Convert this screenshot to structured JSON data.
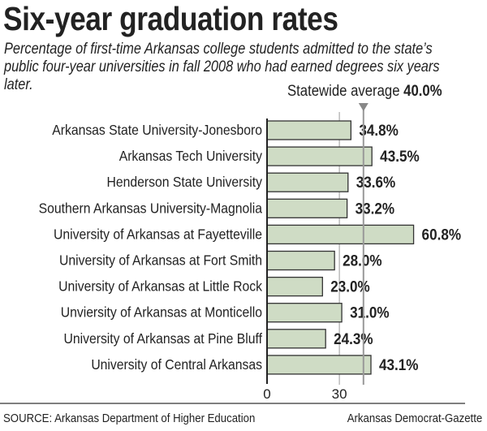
{
  "chart_data": {
    "type": "bar",
    "orientation": "horizontal",
    "title": "Six-year graduation rates",
    "subtitle": "Percentage of first-time Arkansas college students admitted to the state’s public four-year universities in fall 2008 who had earned degrees six years later.",
    "categories": [
      "Arkansas State University-Jonesboro",
      "Arkansas Tech University",
      "Henderson State University",
      "Southern Arkansas University-Magnolia",
      "University of Arkansas at Fayetteville",
      "University of Arkansas at Fort Smith",
      "University of Arkansas at Little Rock",
      "Unviersity of Arkansas at Monticello",
      "University of Arkansas at Pine Bluff",
      "University of Central Arkansas"
    ],
    "values": [
      34.8,
      43.5,
      33.6,
      33.2,
      60.8,
      28.0,
      23.0,
      31.0,
      24.3,
      43.1
    ],
    "data_labels": [
      "34.8%",
      "43.5%",
      "33.6%",
      "33.2%",
      "60.8%",
      "28.0%",
      "23.0%",
      "31.0%",
      "24.3%",
      "43.1%"
    ],
    "x_ticks": [
      "0",
      "30"
    ],
    "x_tick_values": [
      0,
      30
    ],
    "xlim": [
      0,
      60.8
    ],
    "reference_line": {
      "label": "Statewide average",
      "value_label": "40.0%",
      "value": 40.0
    },
    "grid": true,
    "bar_color": "#cfdcc5",
    "bar_border": "#333333"
  },
  "footer": {
    "source": "SOURCE: Arkansas Department of Higher Education",
    "credit": "Arkansas Democrat-Gazette"
  }
}
